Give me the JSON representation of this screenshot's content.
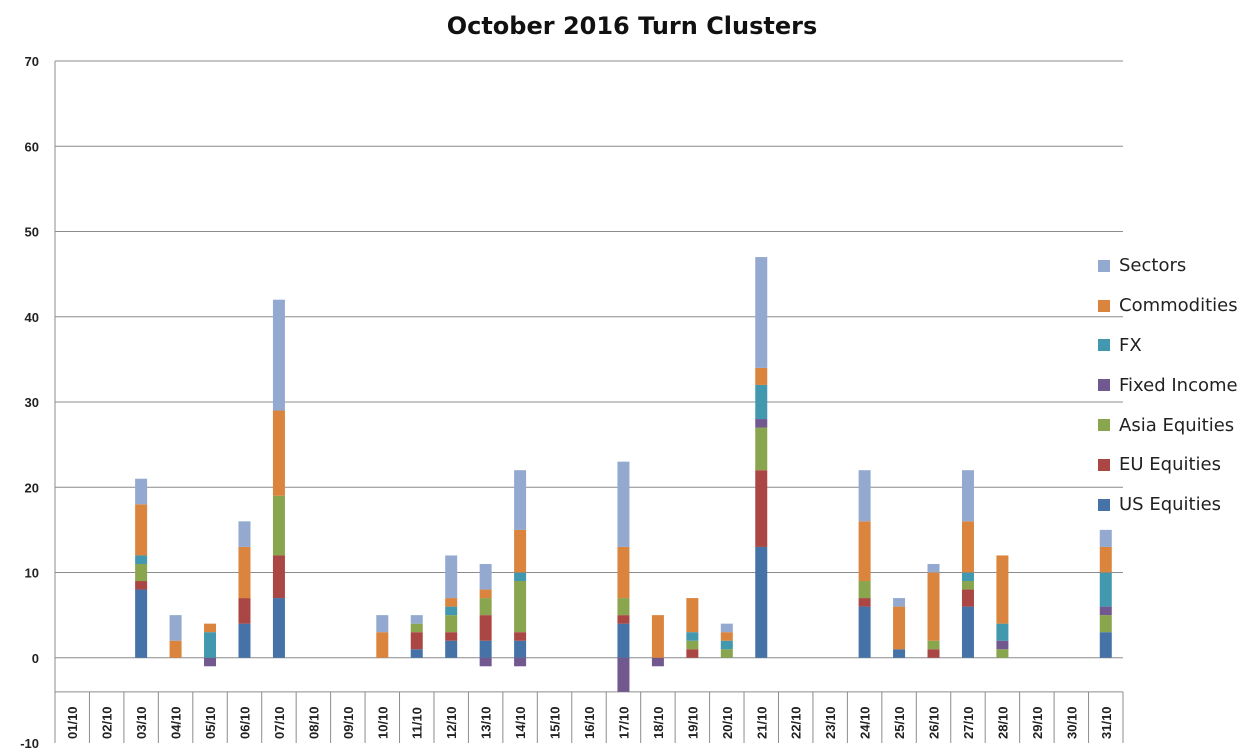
{
  "chart_data": {
    "type": "bar",
    "stacked": true,
    "title": "October 2016 Turn Clusters",
    "xlabel": "",
    "ylabel": "",
    "ylim": [
      -10,
      70
    ],
    "y_ticks": [
      -10,
      0,
      10,
      20,
      30,
      40,
      50,
      60,
      70
    ],
    "grid": "horizontal",
    "legend_position": "right",
    "categories": [
      "01/10",
      "02/10",
      "03/10",
      "04/10",
      "05/10",
      "06/10",
      "07/10",
      "08/10",
      "09/10",
      "10/10",
      "11/10",
      "12/10",
      "13/10",
      "14/10",
      "15/10",
      "16/10",
      "17/10",
      "18/10",
      "19/10",
      "20/10",
      "21/10",
      "22/10",
      "23/10",
      "24/10",
      "25/10",
      "26/10",
      "27/10",
      "28/10",
      "29/10",
      "30/10",
      "31/10"
    ],
    "series": [
      {
        "name": "US Equities",
        "color": "#4572A7",
        "values": [
          0,
          0,
          8,
          0,
          0,
          4,
          7,
          0,
          0,
          0,
          1,
          2,
          2,
          2,
          0,
          0,
          4,
          0,
          0,
          0,
          13,
          0,
          0,
          6,
          1,
          0,
          6,
          0,
          0,
          0,
          3
        ]
      },
      {
        "name": "EU Equities",
        "color": "#AA4643",
        "values": [
          0,
          0,
          1,
          0,
          0,
          3,
          5,
          0,
          0,
          0,
          2,
          1,
          3,
          1,
          0,
          0,
          1,
          0,
          1,
          0,
          9,
          0,
          0,
          1,
          0,
          1,
          2,
          0,
          0,
          0,
          0
        ]
      },
      {
        "name": "Asia Equities",
        "color": "#89A54E",
        "values": [
          0,
          0,
          2,
          0,
          0,
          0,
          7,
          0,
          0,
          0,
          1,
          2,
          2,
          6,
          0,
          0,
          2,
          0,
          1,
          1,
          5,
          0,
          0,
          2,
          0,
          1,
          1,
          1,
          0,
          0,
          2
        ]
      },
      {
        "name": "Fixed Income",
        "color": "#71588F",
        "values": [
          0,
          0,
          0,
          0,
          -1,
          0,
          0,
          0,
          0,
          0,
          0,
          0,
          -1,
          -1,
          0,
          0,
          -4,
          -1,
          0,
          0,
          1,
          0,
          0,
          0,
          0,
          0,
          0,
          1,
          0,
          0,
          1
        ]
      },
      {
        "name": "FX",
        "color": "#4198AF",
        "values": [
          0,
          0,
          1,
          0,
          3,
          0,
          0,
          0,
          0,
          0,
          0,
          1,
          0,
          1,
          0,
          0,
          0,
          0,
          1,
          1,
          4,
          0,
          0,
          0,
          0,
          0,
          1,
          2,
          0,
          0,
          4
        ]
      },
      {
        "name": "Commodities",
        "color": "#DB843D",
        "values": [
          0,
          0,
          6,
          2,
          1,
          6,
          10,
          0,
          0,
          3,
          0,
          1,
          1,
          5,
          0,
          0,
          6,
          5,
          4,
          1,
          2,
          0,
          0,
          7,
          5,
          8,
          6,
          8,
          0,
          0,
          3
        ]
      },
      {
        "name": "Sectors",
        "color": "#93A9CF",
        "values": [
          0,
          0,
          3,
          3,
          0,
          3,
          13,
          0,
          0,
          2,
          1,
          5,
          3,
          7,
          0,
          0,
          10,
          0,
          0,
          1,
          13,
          0,
          0,
          6,
          1,
          1,
          6,
          0,
          0,
          0,
          2
        ]
      }
    ]
  }
}
